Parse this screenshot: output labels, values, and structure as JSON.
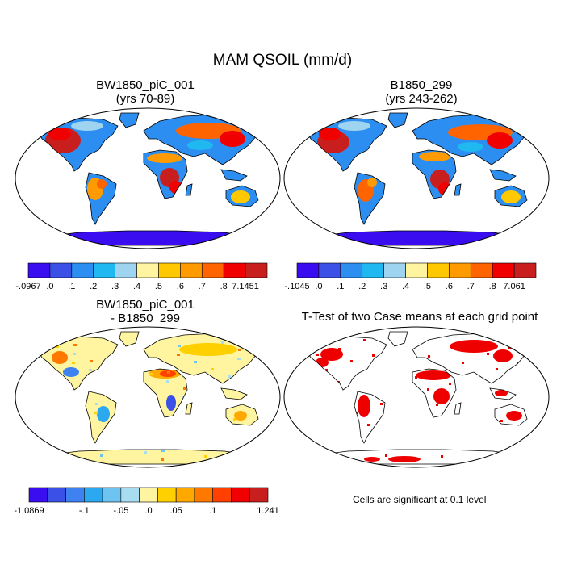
{
  "page_title": "MAM QSOIL (mm/d)",
  "palette_abs": [
    "#3a0cf0",
    "#3a50e6",
    "#2c8ef0",
    "#20b8f0",
    "#9ed4f0",
    "#fff5a0",
    "#ffc800",
    "#ff9b00",
    "#ff6400",
    "#f00000",
    "#c81e1e"
  ],
  "palette_diff": [
    "#3a0cf0",
    "#3a50e6",
    "#3d82f0",
    "#2ca8f0",
    "#6ec4f0",
    "#a8dcf0",
    "#fff5a0",
    "#ffd000",
    "#ffa800",
    "#ff7800",
    "#ff4000",
    "#f00000",
    "#c81e1e"
  ],
  "chart_data": [
    {
      "type": "heatmap",
      "name": "case1",
      "title_line1": "BW1850_piC_001",
      "title_line2": "(yrs 70-89)",
      "colorbar": {
        "labels": [
          "-.0967",
          ".0",
          ".1",
          ".2",
          ".3",
          ".4",
          ".5",
          ".6",
          ".7",
          ".8",
          "7.1451"
        ]
      }
    },
    {
      "type": "heatmap",
      "name": "case2",
      "title_line1": "B1850_299",
      "title_line2": "(yrs 243-262)",
      "colorbar": {
        "labels": [
          "-.1045",
          ".0",
          ".1",
          ".2",
          ".3",
          ".4",
          ".5",
          ".6",
          ".7",
          ".8",
          "7.061"
        ]
      }
    },
    {
      "type": "heatmap",
      "name": "difference",
      "title_line1": "BW1850_piC_001",
      "title_line2": "- B1850_299",
      "colorbar": {
        "labels": [
          "-1.0869",
          "-.1",
          "-.05",
          ".0",
          ".05",
          ".1",
          "1.241"
        ]
      }
    },
    {
      "type": "heatmap",
      "name": "ttest",
      "title_line1": "T-Test of two Case means at each grid point",
      "significance_color": "#ee0000",
      "footnote": "Cells are significant at 0.1 level"
    }
  ]
}
